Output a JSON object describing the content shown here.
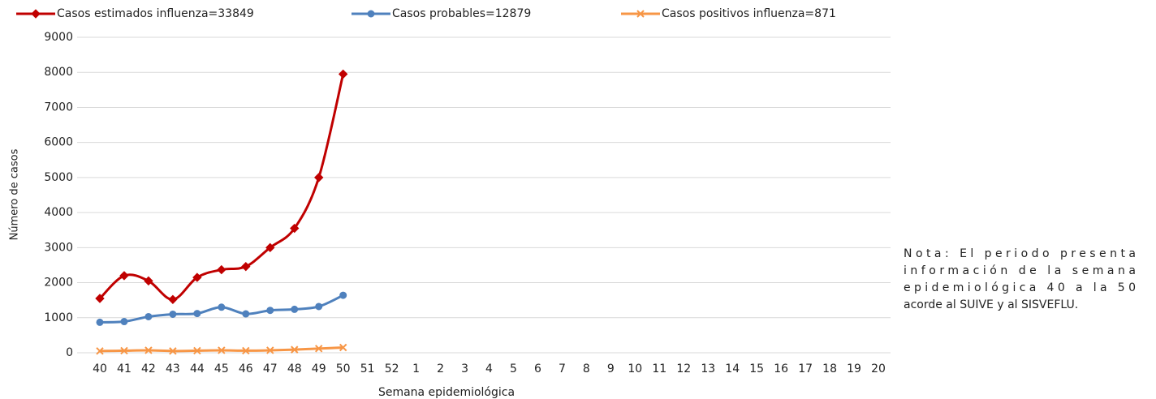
{
  "chart_data": {
    "type": "line",
    "xlabel": "Semana epidemiológica",
    "ylabel": "Número de casos",
    "categories": [
      "40",
      "41",
      "42",
      "43",
      "44",
      "45",
      "46",
      "47",
      "48",
      "49",
      "50",
      "51",
      "52",
      "1",
      "2",
      "3",
      "4",
      "5",
      "6",
      "7",
      "8",
      "9",
      "10",
      "11",
      "12",
      "13",
      "14",
      "15",
      "16",
      "17",
      "18",
      "19",
      "20"
    ],
    "series": [
      {
        "name": "Casos estimados influenza=33849",
        "color": "#c00000",
        "marker": "diamond",
        "values": [
          1550,
          2200,
          2050,
          1520,
          2150,
          2370,
          2460,
          3000,
          3550,
          5000,
          7950,
          null,
          null,
          null,
          null,
          null,
          null,
          null,
          null,
          null,
          null,
          null,
          null,
          null,
          null,
          null,
          null,
          null,
          null,
          null,
          null,
          null,
          null
        ]
      },
      {
        "name": "Casos probables=12879",
        "color": "#4f81bd",
        "marker": "circle",
        "values": [
          870,
          890,
          1030,
          1100,
          1120,
          1300,
          1110,
          1210,
          1240,
          1320,
          1640,
          null,
          null,
          null,
          null,
          null,
          null,
          null,
          null,
          null,
          null,
          null,
          null,
          null,
          null,
          null,
          null,
          null,
          null,
          null,
          null,
          null,
          null
        ]
      },
      {
        "name": "Casos positivos influenza=871",
        "color": "#f79646",
        "marker": "x",
        "values": [
          50,
          60,
          70,
          50,
          60,
          70,
          60,
          70,
          90,
          120,
          150,
          null,
          null,
          null,
          null,
          null,
          null,
          null,
          null,
          null,
          null,
          null,
          null,
          null,
          null,
          null,
          null,
          null,
          null,
          null,
          null,
          null,
          null
        ]
      }
    ],
    "ylim": [
      0,
      9000
    ],
    "yticks": [
      0,
      1000,
      2000,
      3000,
      4000,
      5000,
      6000,
      7000,
      8000,
      9000
    ],
    "grid": true,
    "legend": "top",
    "note": [
      "Nota: El periodo presenta",
      "información de la semana",
      "epidemiológica 40 a la 50",
      "acorde al SUIVE y al SISVEFLU."
    ]
  }
}
